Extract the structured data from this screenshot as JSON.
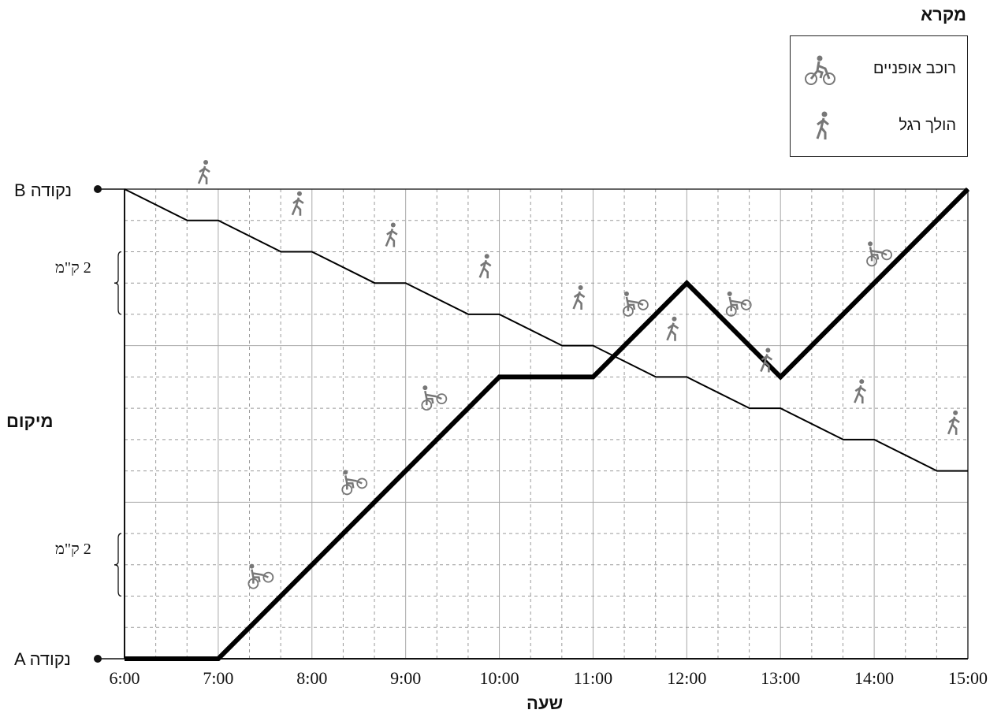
{
  "legend": {
    "title": "מקרא",
    "items": [
      {
        "label": "רוכב אופניים",
        "icon": "cyclist-icon"
      },
      {
        "label": "הולך רגל",
        "icon": "walker-icon"
      }
    ]
  },
  "labels": {
    "point_b": "B נקודה",
    "point_a": "A נקודה",
    "scale_upper": "2 ק\"מ",
    "scale_lower": "2 ק\"מ"
  },
  "chart_data": {
    "type": "line",
    "xlabel": "שעה",
    "ylabel": "מיקום",
    "x_ticks": [
      "6:00",
      "7:00",
      "8:00",
      "9:00",
      "10:00",
      "11:00",
      "12:00",
      "13:00",
      "14:00",
      "15:00"
    ],
    "xlim": [
      6,
      15
    ],
    "ylim": [
      0,
      15
    ],
    "y_units": "km from point A",
    "grid": true,
    "legend_position": "top-right",
    "series": [
      {
        "name": "רוכב אופניים",
        "icon": "cyclist-icon",
        "points": [
          [
            6,
            0
          ],
          [
            7,
            0
          ],
          [
            10,
            9
          ],
          [
            11,
            9
          ],
          [
            12,
            12
          ],
          [
            13,
            9
          ],
          [
            15,
            15
          ]
        ]
      },
      {
        "name": "הולך רגל",
        "icon": "walker-icon",
        "points": [
          [
            6,
            15
          ],
          [
            6.67,
            14
          ],
          [
            7,
            14
          ],
          [
            7.67,
            13
          ],
          [
            8,
            13
          ],
          [
            8.67,
            12
          ],
          [
            9,
            12
          ],
          [
            9.67,
            11
          ],
          [
            10,
            11
          ],
          [
            10.67,
            10
          ],
          [
            11,
            10
          ],
          [
            11.67,
            9
          ],
          [
            12,
            9
          ],
          [
            12.67,
            8
          ],
          [
            13,
            8
          ],
          [
            13.67,
            7
          ],
          [
            14,
            7
          ],
          [
            14.67,
            6
          ],
          [
            15,
            6
          ]
        ]
      }
    ]
  }
}
